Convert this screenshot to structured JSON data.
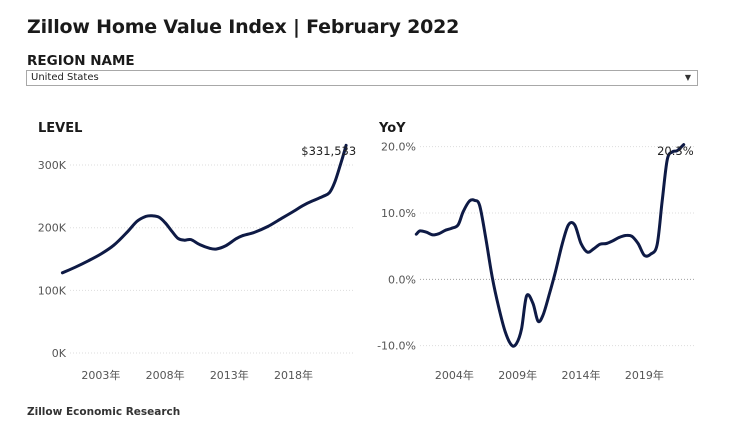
{
  "header": {
    "title": "Zillow Home Value Index | February 2022"
  },
  "region": {
    "label": "REGION NAME",
    "selected": "United States"
  },
  "footer": {
    "text": "Zillow Economic Research"
  },
  "colors": {
    "line": "#0e1a45",
    "grid": "#dddddd",
    "axis_text": "#555555"
  },
  "chart_data": [
    {
      "type": "line",
      "title": "LEVEL",
      "xlabel": "",
      "ylabel": "",
      "ylim": [
        0,
        340000
      ],
      "y_ticks": [
        0,
        100000,
        200000,
        300000
      ],
      "y_tick_labels": [
        "0K",
        "100K",
        "200K",
        "300K"
      ],
      "x_ticks": [
        2003,
        2008,
        2013,
        2018
      ],
      "x_tick_labels": [
        "2003年",
        "2008年",
        "2013年",
        "2018年"
      ],
      "xlim": [
        1999.5,
        2022.4
      ],
      "end_label": "$331,533",
      "grid": true,
      "x": [
        2000.0,
        2001.0,
        2002.0,
        2003.0,
        2004.0,
        2005.0,
        2005.8,
        2006.5,
        2007.0,
        2007.5,
        2008.0,
        2008.5,
        2009.0,
        2009.5,
        2010.0,
        2010.7,
        2011.5,
        2012.0,
        2012.7,
        2013.5,
        2014.0,
        2015.0,
        2016.0,
        2017.0,
        2018.0,
        2018.7,
        2019.5,
        2020.3,
        2020.8,
        2021.2,
        2021.6,
        2022.1
      ],
      "values": [
        128000,
        137000,
        147000,
        158000,
        172000,
        192000,
        210000,
        218000,
        219000,
        217000,
        208000,
        195000,
        183000,
        180000,
        181000,
        173000,
        167000,
        166000,
        171000,
        182000,
        187000,
        193000,
        202000,
        214000,
        226000,
        235000,
        243000,
        250000,
        256000,
        272000,
        297000,
        331533
      ]
    },
    {
      "type": "line",
      "title": "YoY",
      "xlabel": "",
      "ylabel": "",
      "ylim": [
        -10.5,
        21
      ],
      "y_ticks": [
        -10,
        0,
        10,
        20
      ],
      "y_tick_labels": [
        "-10.0%",
        "0.0%",
        "10.0%",
        "20.0%"
      ],
      "x_ticks": [
        2004,
        2009,
        2014,
        2019
      ],
      "x_tick_labels": [
        "2004年",
        "2009年",
        "2014年",
        "2019年"
      ],
      "xlim": [
        2000.5,
        2022.6
      ],
      "end_label": "20.3%",
      "grid": true,
      "x": [
        2001.0,
        2001.3,
        2001.8,
        2002.3,
        2002.8,
        2003.3,
        2003.8,
        2004.3,
        2004.7,
        2005.2,
        2005.6,
        2006.0,
        2006.5,
        2007.0,
        2007.5,
        2008.0,
        2008.5,
        2008.9,
        2009.3,
        2009.7,
        2010.2,
        2010.6,
        2011.0,
        2011.5,
        2012.0,
        2012.5,
        2013.0,
        2013.5,
        2014.0,
        2014.5,
        2015.0,
        2015.5,
        2016.0,
        2016.5,
        2017.0,
        2017.5,
        2018.0,
        2018.5,
        2019.0,
        2019.5,
        2020.0,
        2020.4,
        2020.8,
        2021.2,
        2021.6,
        2022.1
      ],
      "values": [
        6.8,
        7.3,
        7.1,
        6.7,
        6.9,
        7.4,
        7.7,
        8.2,
        10.2,
        11.8,
        11.9,
        11.1,
        6.0,
        0.2,
        -4.2,
        -7.8,
        -9.9,
        -9.7,
        -7.5,
        -2.5,
        -3.6,
        -6.3,
        -5.4,
        -2.2,
        1.3,
        5.2,
        8.2,
        8.2,
        5.4,
        4.1,
        4.6,
        5.3,
        5.4,
        5.8,
        6.3,
        6.6,
        6.5,
        5.4,
        3.6,
        3.8,
        5.2,
        11.7,
        18.0,
        19.2,
        19.4,
        20.3
      ]
    }
  ]
}
